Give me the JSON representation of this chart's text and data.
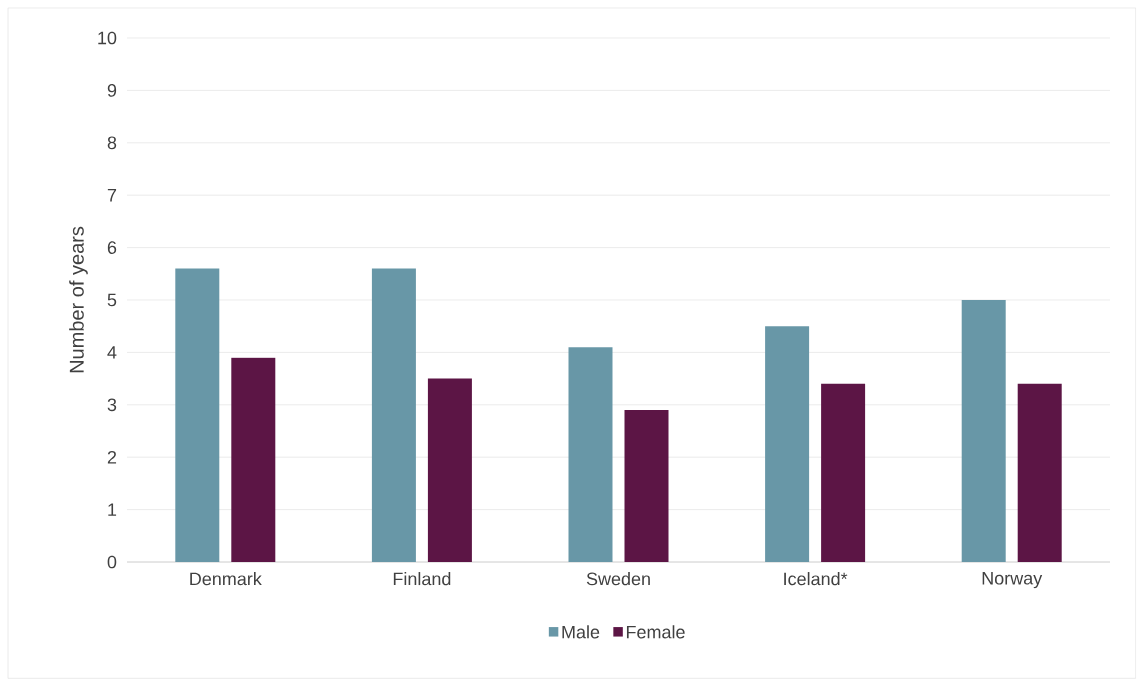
{
  "chart_data": {
    "type": "bar",
    "ylabel": "Number of years",
    "categories": [
      "Denmark",
      "Finland",
      "Sweden",
      "Iceland*",
      "Norway"
    ],
    "series": [
      {
        "name": "Male",
        "color": "#6897a7",
        "values": [
          5.6,
          5.6,
          4.1,
          4.5,
          5.0
        ]
      },
      {
        "name": "Female",
        "color": "#5c1545",
        "values": [
          3.9,
          3.5,
          2.9,
          3.4,
          3.4
        ]
      }
    ],
    "ylim": [
      0,
      10
    ],
    "yticks": [
      0,
      1,
      2,
      3,
      4,
      5,
      6,
      7,
      8,
      9,
      10
    ],
    "grid": "y",
    "legend": "bottom"
  }
}
